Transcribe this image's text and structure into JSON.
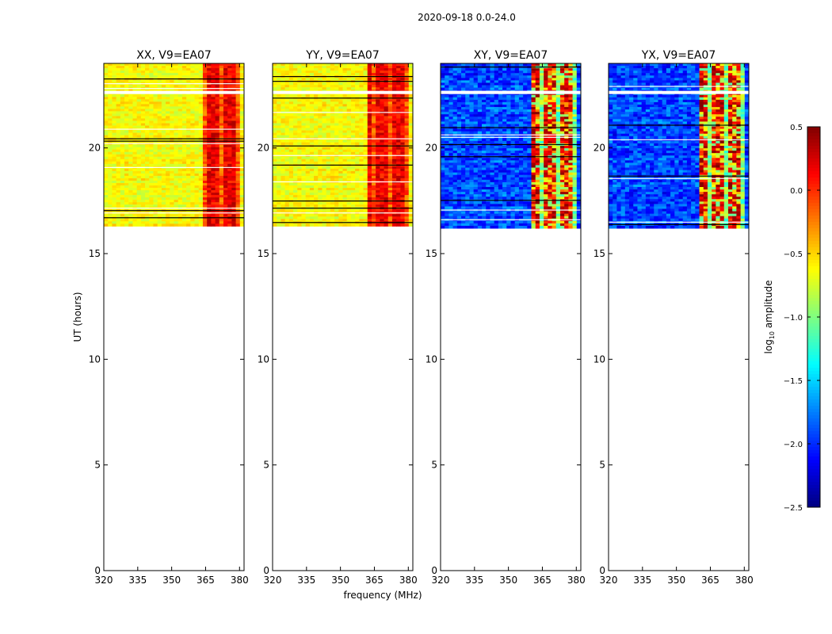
{
  "figure_title": "2020-09-18 0.0-24.0",
  "chart_data": [
    {
      "type": "heatmap",
      "title": "XX, V9=EA07",
      "pattern": "parallel",
      "xlabel": "",
      "ylabel": "UT (hours)",
      "xlim": [
        320,
        382
      ],
      "ylim": [
        0,
        24
      ],
      "xticks": [
        320,
        335,
        350,
        365,
        380
      ],
      "yticks": [
        0,
        5,
        10,
        15,
        20
      ],
      "data_extent_hours": [
        16.3,
        24.0
      ],
      "bright_band_mhz": [
        364,
        380
      ]
    },
    {
      "type": "heatmap",
      "title": "YY, V9=EA07",
      "pattern": "parallel",
      "xlabel": "frequency (MHz)",
      "ylabel": "",
      "xlim": [
        320,
        382
      ],
      "ylim": [
        0,
        24
      ],
      "xticks": [
        320,
        335,
        350,
        365,
        380
      ],
      "yticks": [
        0,
        5,
        10,
        15,
        20
      ],
      "data_extent_hours": [
        16.3,
        24.0
      ],
      "bright_band_mhz": [
        362,
        380
      ]
    },
    {
      "type": "heatmap",
      "title": "XY, V9=EA07",
      "pattern": "cross",
      "xlabel": "",
      "ylabel": "",
      "xlim": [
        320,
        382
      ],
      "ylim": [
        0,
        24
      ],
      "xticks": [
        320,
        335,
        350,
        365,
        380
      ],
      "yticks": [
        0,
        5,
        10,
        15,
        20
      ],
      "data_extent_hours": [
        16.2,
        24.0
      ],
      "bright_band_mhz": [
        360,
        380
      ]
    },
    {
      "type": "heatmap",
      "title": "YX, V9=EA07",
      "pattern": "cross",
      "xlabel": "",
      "ylabel": "",
      "xlim": [
        320,
        382
      ],
      "ylim": [
        0,
        24
      ],
      "xticks": [
        320,
        335,
        350,
        365,
        380
      ],
      "yticks": [
        0,
        5,
        10,
        15,
        20
      ],
      "data_extent_hours": [
        16.2,
        24.0
      ],
      "bright_band_mhz": [
        360,
        380
      ]
    }
  ],
  "colorbar": {
    "label": "log",
    "label_sub": "10",
    "label_suffix": " amplitude",
    "min": -2.5,
    "max": 0.5,
    "ticks": [
      "0.5",
      "0.0",
      "−0.5",
      "−1.0",
      "−1.5",
      "−2.0",
      "−2.5"
    ],
    "tick_values": [
      0.5,
      0.0,
      -0.5,
      -1.0,
      -1.5,
      -2.0,
      -2.5
    ],
    "colormap": "jet"
  }
}
